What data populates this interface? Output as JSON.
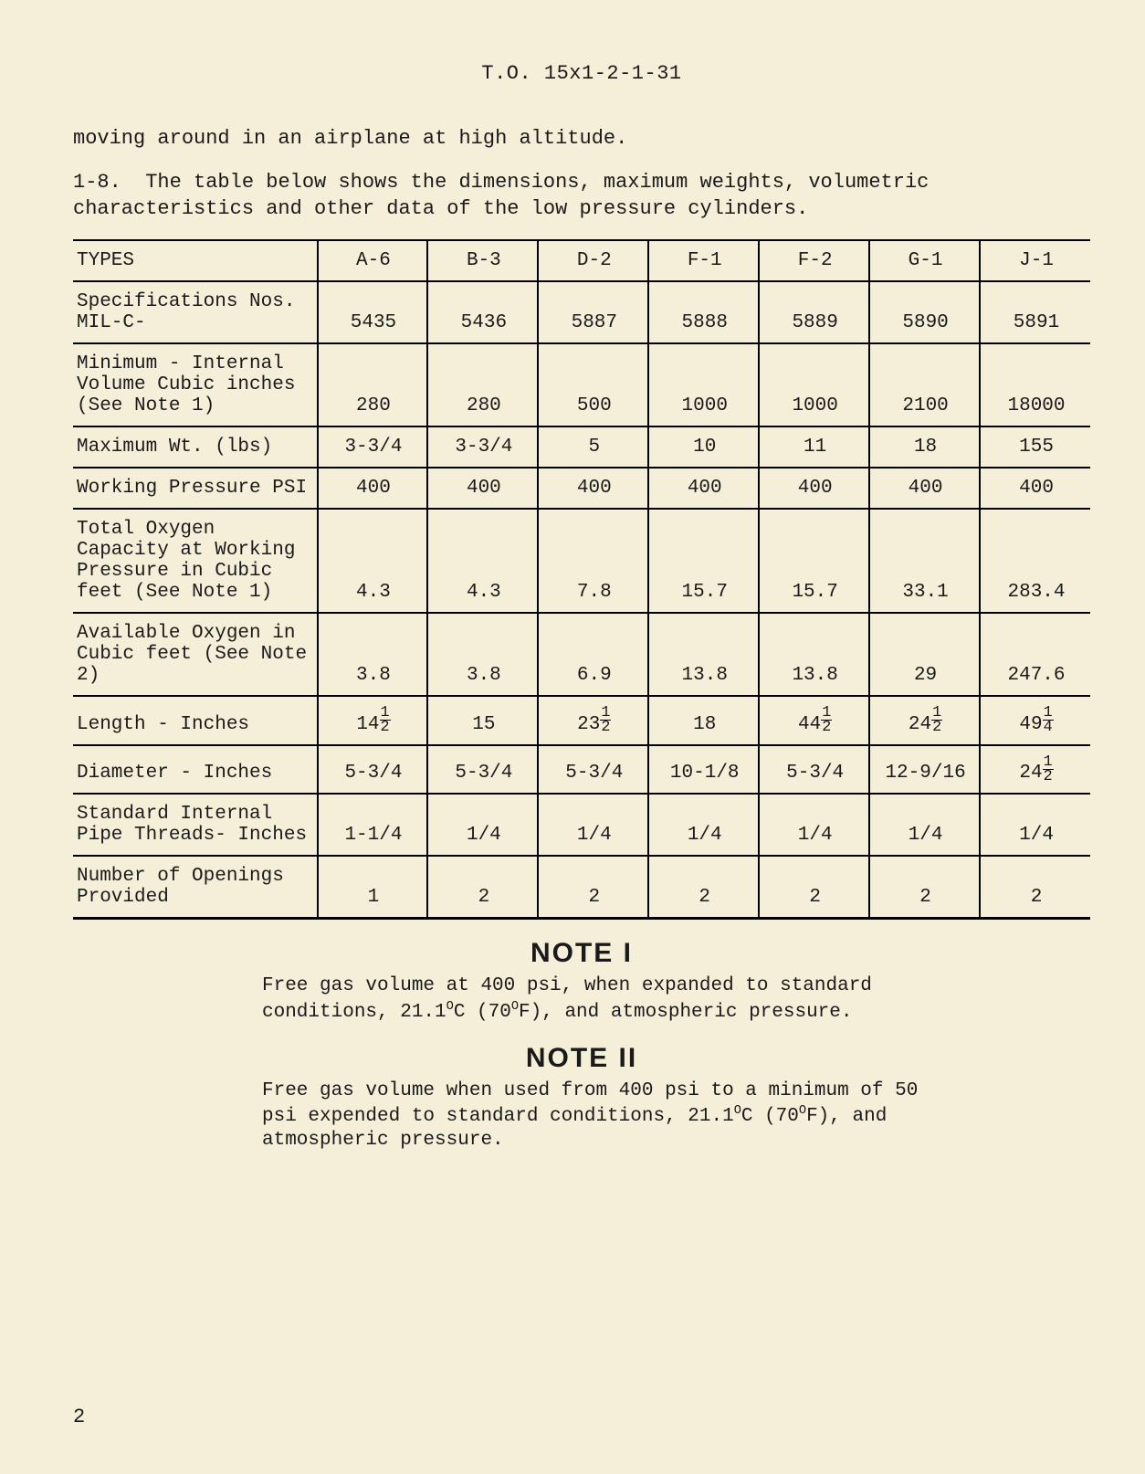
{
  "doc_header": "T.O. 15x1-2-1-31",
  "para_cont": "moving around in an airplane at high altitude.",
  "para_1_8_num": "1-8.",
  "para_1_8": "The table below shows the dimensions, maximum weights, volumetric characteristics and other data of the low pressure cylinders.",
  "table": {
    "col_widths_pct": [
      24,
      10.85,
      10.85,
      10.85,
      10.85,
      10.85,
      10.85,
      10.85
    ],
    "border_color": "#000000",
    "font_size_pt": 16,
    "columns": [
      "TYPES",
      "A-6",
      "B-3",
      "D-2",
      "F-1",
      "F-2",
      "G-1",
      "J-1"
    ],
    "rows": [
      {
        "label": "Specifications Nos. MIL-C-",
        "cells": [
          "5435",
          "5436",
          "5887",
          "5888",
          "5889",
          "5890",
          "5891"
        ]
      },
      {
        "label": "Minimum - Internal Volume Cubic inches (See Note 1)",
        "cells": [
          "280",
          "280",
          "500",
          "1000",
          "1000",
          "2100",
          "18000"
        ]
      },
      {
        "label": "Maximum Wt. (lbs)",
        "cells": [
          "3-3/4",
          "3-3/4",
          "5",
          "10",
          "11",
          "18",
          "155"
        ]
      },
      {
        "label": "Working Pressure PSI",
        "cells": [
          "400",
          "400",
          "400",
          "400",
          "400",
          "400",
          "400"
        ]
      },
      {
        "label": "Total Oxygen Capacity at Working Pressure in Cubic feet (See Note 1)",
        "cells": [
          "4.3",
          "4.3",
          "7.8",
          "15.7",
          "15.7",
          "33.1",
          "283.4"
        ]
      },
      {
        "label": "Available Oxygen in Cubic feet (See Note 2)",
        "cells": [
          "3.8",
          "3.8",
          "6.9",
          "13.8",
          "13.8",
          "29",
          "247.6"
        ]
      },
      {
        "label": "Length - Inches",
        "cells": [
          {
            "whole": "14",
            "n": "1",
            "d": "2"
          },
          "15",
          {
            "whole": "23",
            "n": "1",
            "d": "2"
          },
          "18",
          {
            "whole": "44",
            "n": "1",
            "d": "2"
          },
          {
            "whole": "24",
            "n": "1",
            "d": "2"
          },
          {
            "whole": "49",
            "n": "1",
            "d": "4"
          }
        ]
      },
      {
        "label": "Diameter - Inches",
        "cells": [
          "5-3/4",
          "5-3/4",
          "5-3/4",
          "10-1/8",
          "5-3/4",
          "12-9/16",
          {
            "whole": "24",
            "n": "1",
            "d": "2"
          }
        ]
      },
      {
        "label": "Standard Internal Pipe Threads- Inches",
        "cells": [
          "1-1/4",
          "1/4",
          "1/4",
          "1/4",
          "1/4",
          "1/4",
          "1/4"
        ]
      },
      {
        "label": "Number of Openings Provided",
        "cells": [
          "1",
          "2",
          "2",
          "2",
          "2",
          "2",
          "2"
        ]
      }
    ]
  },
  "note1_heading": "NOTE I",
  "note1_body_pre": "Free gas volume at 400 psi, when expanded to standard conditions, 21.1",
  "note1_body_mid1": "C (70",
  "note1_body_post": "F), and atmospheric pressure.",
  "note2_heading": "NOTE II",
  "note2_body_pre": "Free gas volume when used from 400 psi to a minimum of 50 psi expended to standard conditions, 21.1",
  "note2_body_mid1": "C (70",
  "note2_body_post": "F), and atmospheric pressure.",
  "deg_o": "O",
  "page_number": "2",
  "colors": {
    "page_bg": "#f5eed8",
    "text": "#1a1a1a",
    "rule": "#000000"
  }
}
